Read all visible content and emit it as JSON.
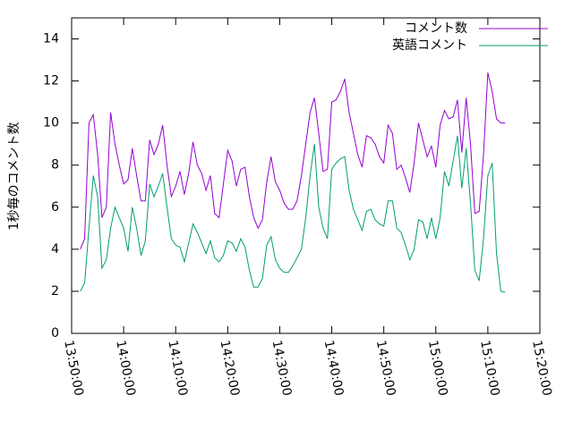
{
  "chart_data": {
    "type": "line",
    "y_label": "1秒毎のコメント数",
    "x": [
      49900,
      49950,
      50000,
      50050,
      50100,
      50150,
      50200,
      50250,
      50300,
      50350,
      50400,
      50450,
      50500,
      50550,
      50600,
      50650,
      50700,
      50750,
      50800,
      50850,
      50900,
      50950,
      51000,
      51050,
      51100,
      51150,
      51200,
      51250,
      51300,
      51350,
      51400,
      51450,
      51500,
      51550,
      51600,
      51650,
      51700,
      51750,
      51800,
      51850,
      51900,
      51950,
      52000,
      52050,
      52100,
      52150,
      52200,
      52250,
      52300,
      52350,
      52400,
      52450,
      52500,
      52550,
      52600,
      52650,
      52700,
      52750,
      52800,
      52850,
      52900,
      52950,
      53000,
      53050,
      53100,
      53150,
      53200,
      53250,
      53300,
      53350,
      53400,
      53450,
      53500,
      53550,
      53600,
      53650,
      53700,
      53750,
      53800,
      53850,
      53900,
      53950,
      54000,
      54050,
      54100,
      54150,
      54200,
      54250,
      54300,
      54350,
      54400,
      54450,
      54500,
      54550,
      54600,
      54650,
      54700,
      54750,
      54800
    ],
    "series": [
      {
        "name": "コメント数",
        "color": "#9400d3",
        "values": [
          4.0,
          4.5,
          10.0,
          10.4,
          8.5,
          5.5,
          6.0,
          10.5,
          9.0,
          8.0,
          7.1,
          7.3,
          8.8,
          7.5,
          6.3,
          6.3,
          9.2,
          8.5,
          9.0,
          9.9,
          8.0,
          6.5,
          7.0,
          7.7,
          6.6,
          7.6,
          9.1,
          8.0,
          7.6,
          6.8,
          7.5,
          5.7,
          5.5,
          7.1,
          8.7,
          8.2,
          7.0,
          7.8,
          7.9,
          6.5,
          5.5,
          5.0,
          5.4,
          7.2,
          8.4,
          7.2,
          6.8,
          6.2,
          5.9,
          5.9,
          6.3,
          7.5,
          9.0,
          10.5,
          11.2,
          9.5,
          7.7,
          7.8,
          11.0,
          11.1,
          11.5,
          12.1,
          10.5,
          9.5,
          8.5,
          7.9,
          9.4,
          9.3,
          9.0,
          8.4,
          8.1,
          9.9,
          9.5,
          7.8,
          8.0,
          7.4,
          6.7,
          8.1,
          10.0,
          9.2,
          8.4,
          8.9,
          7.9,
          9.9,
          10.6,
          10.2,
          10.3,
          11.1,
          8.6,
          11.2,
          9.0,
          5.7,
          5.8,
          8.5,
          12.4,
          11.5,
          10.2,
          10.0,
          10.0
        ]
      },
      {
        "name": "英語コメント",
        "color": "#009e73",
        "values": [
          2.0,
          2.4,
          5.0,
          7.5,
          6.5,
          3.1,
          3.5,
          5.0,
          6.0,
          5.5,
          5.0,
          3.9,
          6.0,
          5.0,
          3.7,
          4.4,
          7.1,
          6.5,
          7.0,
          7.6,
          6.0,
          4.5,
          4.2,
          4.1,
          3.4,
          4.3,
          5.2,
          4.8,
          4.3,
          3.8,
          4.4,
          3.6,
          3.4,
          3.7,
          4.4,
          4.3,
          3.9,
          4.5,
          4.1,
          3.0,
          2.2,
          2.2,
          2.6,
          4.2,
          4.6,
          3.5,
          3.1,
          2.9,
          2.9,
          3.2,
          3.6,
          4.0,
          5.5,
          7.5,
          9.0,
          6.0,
          5.0,
          4.5,
          7.8,
          8.1,
          8.3,
          8.4,
          6.8,
          5.9,
          5.4,
          4.9,
          5.8,
          5.9,
          5.4,
          5.2,
          5.1,
          6.3,
          6.3,
          5.0,
          4.8,
          4.2,
          3.5,
          4.0,
          5.4,
          5.3,
          4.5,
          5.5,
          4.5,
          5.5,
          7.7,
          7.0,
          8.2,
          9.4,
          6.9,
          8.8,
          6.2,
          3.0,
          2.5,
          4.5,
          7.5,
          8.1,
          3.8,
          2.0,
          1.95
        ]
      }
    ],
    "xlim": [
      49800,
      55200
    ],
    "xticks": [
      {
        "value": 49800,
        "label": "13:50:00"
      },
      {
        "value": 50400,
        "label": "14:00:00"
      },
      {
        "value": 51000,
        "label": "14:10:00"
      },
      {
        "value": 51600,
        "label": "14:20:00"
      },
      {
        "value": 52200,
        "label": "14:30:00"
      },
      {
        "value": 52800,
        "label": "14:40:00"
      },
      {
        "value": 53400,
        "label": "14:50:00"
      },
      {
        "value": 54000,
        "label": "15:00:00"
      },
      {
        "value": 54600,
        "label": "15:10:00"
      },
      {
        "value": 55200,
        "label": "15:20:00"
      }
    ],
    "ylim": [
      0,
      15
    ],
    "yticks": [
      0,
      2,
      4,
      6,
      8,
      10,
      12,
      14
    ],
    "legend": "top-right",
    "grid": false
  }
}
